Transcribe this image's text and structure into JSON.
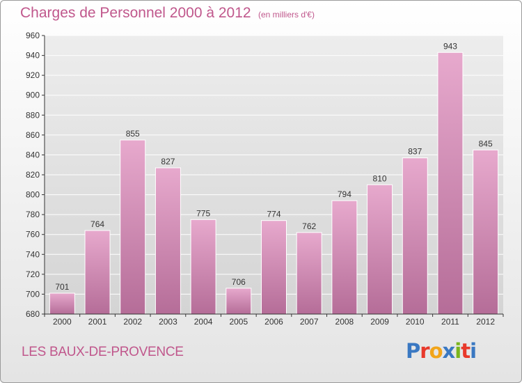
{
  "header": {
    "title": "Charges de Personnel 2000 à 2012",
    "subtitle": "(en milliers d'€)"
  },
  "footer": {
    "place": "LES BAUX-DE-PROVENCE",
    "logo": "Proxiti",
    "logo_colors": [
      "#3a78c2",
      "#e8392b",
      "#f2a51a",
      "#3a78c2",
      "#7ab51d",
      "#e8392b",
      "#3a78c2"
    ]
  },
  "colors": {
    "bar_top": "#e7a9cd",
    "bar_bottom": "#b56d98",
    "bar_stroke": "#ffffff",
    "axis": "#333333",
    "grid": "#ffffff",
    "accent": "#c0578c"
  },
  "chart_data": {
    "type": "bar",
    "categories": [
      "2000",
      "2001",
      "2002",
      "2003",
      "2004",
      "2005",
      "2006",
      "2007",
      "2008",
      "2009",
      "2010",
      "2011",
      "2012"
    ],
    "values": [
      701,
      764,
      855,
      827,
      775,
      706,
      774,
      762,
      794,
      810,
      837,
      943,
      845
    ],
    "title": "Charges de Personnel 2000 à 2012",
    "subtitle": "(en milliers d'€)",
    "xlabel": "",
    "ylabel": "",
    "ylim": [
      680,
      960
    ],
    "yticks": [
      680,
      700,
      720,
      740,
      760,
      780,
      800,
      820,
      840,
      860,
      880,
      900,
      920,
      940,
      960
    ],
    "grid": true,
    "data_labels": true
  }
}
